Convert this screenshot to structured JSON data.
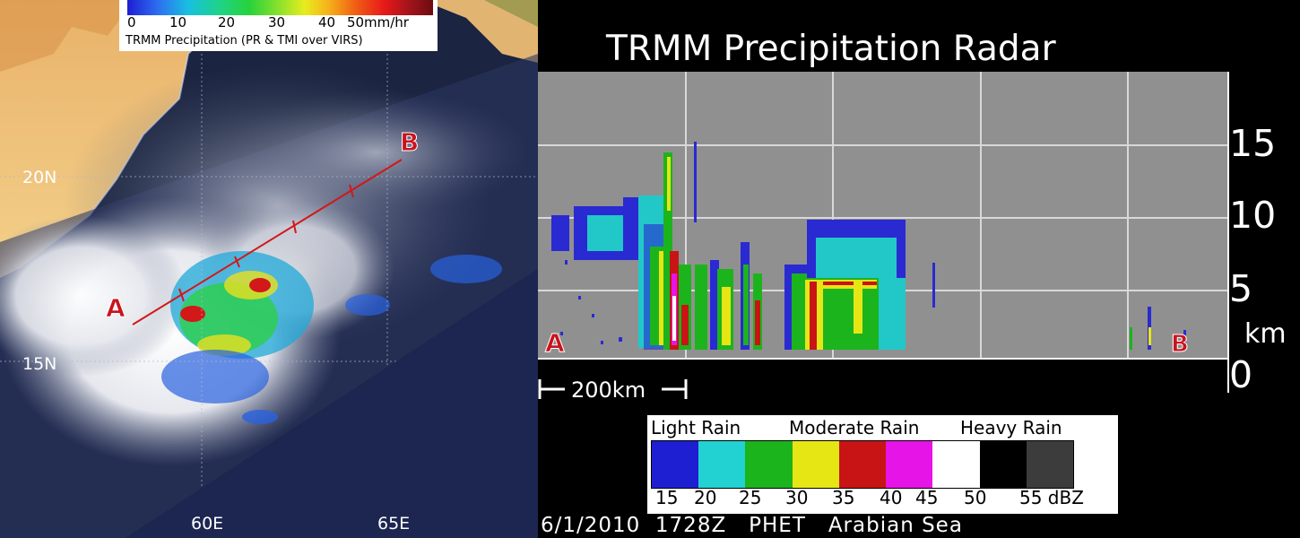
{
  "precip_legend": {
    "ticks": [
      "0",
      "10",
      "20",
      "30",
      "40",
      "50"
    ],
    "unit": "mm/hr",
    "title": "TRMM Precipitation  (PR & TMI  over VIRS)"
  },
  "map": {
    "lat_labels": [
      "20N",
      "15N"
    ],
    "lon_labels": [
      "60E",
      "65E"
    ],
    "point_a": "A",
    "point_b": "B"
  },
  "radar": {
    "title": "TRMM Precipitation Radar",
    "km_ticks": [
      "15",
      "10",
      "5",
      "0"
    ],
    "km_unit": "km",
    "scale_label": "200km",
    "point_a": "A",
    "point_b": "B"
  },
  "dbz_legend": {
    "categories": [
      "Light Rain",
      "Moderate Rain",
      "Heavy Rain"
    ],
    "ticks": [
      "15",
      "20",
      "25",
      "30",
      "35",
      "40",
      "45",
      "50",
      "55 dBZ"
    ],
    "colors": [
      "#1e1ed2",
      "#22d2d2",
      "#1cb41c",
      "#e6e614",
      "#c81414",
      "#e614e6",
      "#ffffff",
      "#000000",
      "#3c3c3c"
    ]
  },
  "caption": "6/1/2010  1728Z   PHET   Arabian Sea"
}
